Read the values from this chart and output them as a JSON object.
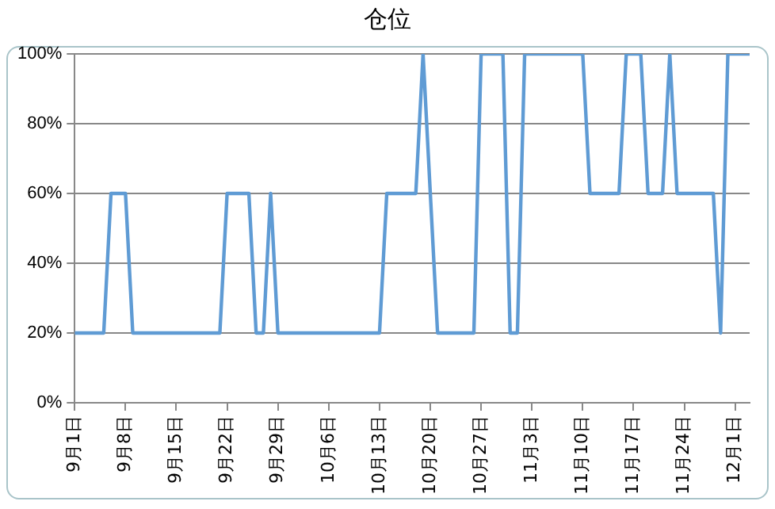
{
  "chart_data": {
    "type": "line",
    "title": "仓位",
    "x": [
      "--09-01",
      "--09-05",
      "--09-06",
      "--09-08",
      "--09-09",
      "--09-21",
      "--09-22",
      "--09-25",
      "--09-26",
      "--09-27",
      "--09-28",
      "--09-29",
      "--10-13",
      "--10-14",
      "--10-18",
      "--10-19",
      "--10-21",
      "--10-26",
      "--10-27",
      "--10-30",
      "--10-31",
      "--11-01",
      "--11-02",
      "--11-10",
      "--11-11",
      "--11-15",
      "--11-16",
      "--11-18",
      "--11-19",
      "--11-21",
      "--11-22",
      "--11-23",
      "--11-28",
      "--11-29",
      "--11-30",
      "--12-03"
    ],
    "series": [
      {
        "color": "#5f9bd4",
        "values": [
          20,
          20,
          60,
          60,
          20,
          20,
          60,
          60,
          20,
          20,
          60,
          20,
          20,
          60,
          60,
          100,
          20,
          20,
          100,
          100,
          20,
          20,
          100,
          100,
          60,
          60,
          100,
          100,
          60,
          60,
          100,
          60,
          60,
          20,
          100,
          100
        ]
      }
    ],
    "xlim": [
      "--09-01",
      "--12-03"
    ],
    "xticks": [
      {
        "value": "--09-01",
        "label": "9月1日"
      },
      {
        "value": "--09-08",
        "label": "9月8日"
      },
      {
        "value": "--09-15",
        "label": "9月15日"
      },
      {
        "value": "--09-22",
        "label": "9月22日"
      },
      {
        "value": "--09-29",
        "label": "9月29日"
      },
      {
        "value": "--10-06",
        "label": "10月6日"
      },
      {
        "value": "--10-13",
        "label": "10月13日"
      },
      {
        "value": "--10-20",
        "label": "10月20日"
      },
      {
        "value": "--10-27",
        "label": "10月27日"
      },
      {
        "value": "--11-03",
        "label": "11月3日"
      },
      {
        "value": "--11-10",
        "label": "11月10日"
      },
      {
        "value": "--11-17",
        "label": "11月17日"
      },
      {
        "value": "--11-24",
        "label": "11月24日"
      },
      {
        "value": "--12-01",
        "label": "12月1日"
      }
    ],
    "ylim": [
      0,
      100
    ],
    "yticks": [
      {
        "value": 0,
        "label": "0%"
      },
      {
        "value": 20,
        "label": "20%"
      },
      {
        "value": 40,
        "label": "40%"
      },
      {
        "value": 60,
        "label": "60%"
      },
      {
        "value": 80,
        "label": "80%"
      },
      {
        "value": 100,
        "label": "100%"
      }
    ],
    "grid": "y",
    "legend": false,
    "marker": "none",
    "line_style": "solid"
  }
}
